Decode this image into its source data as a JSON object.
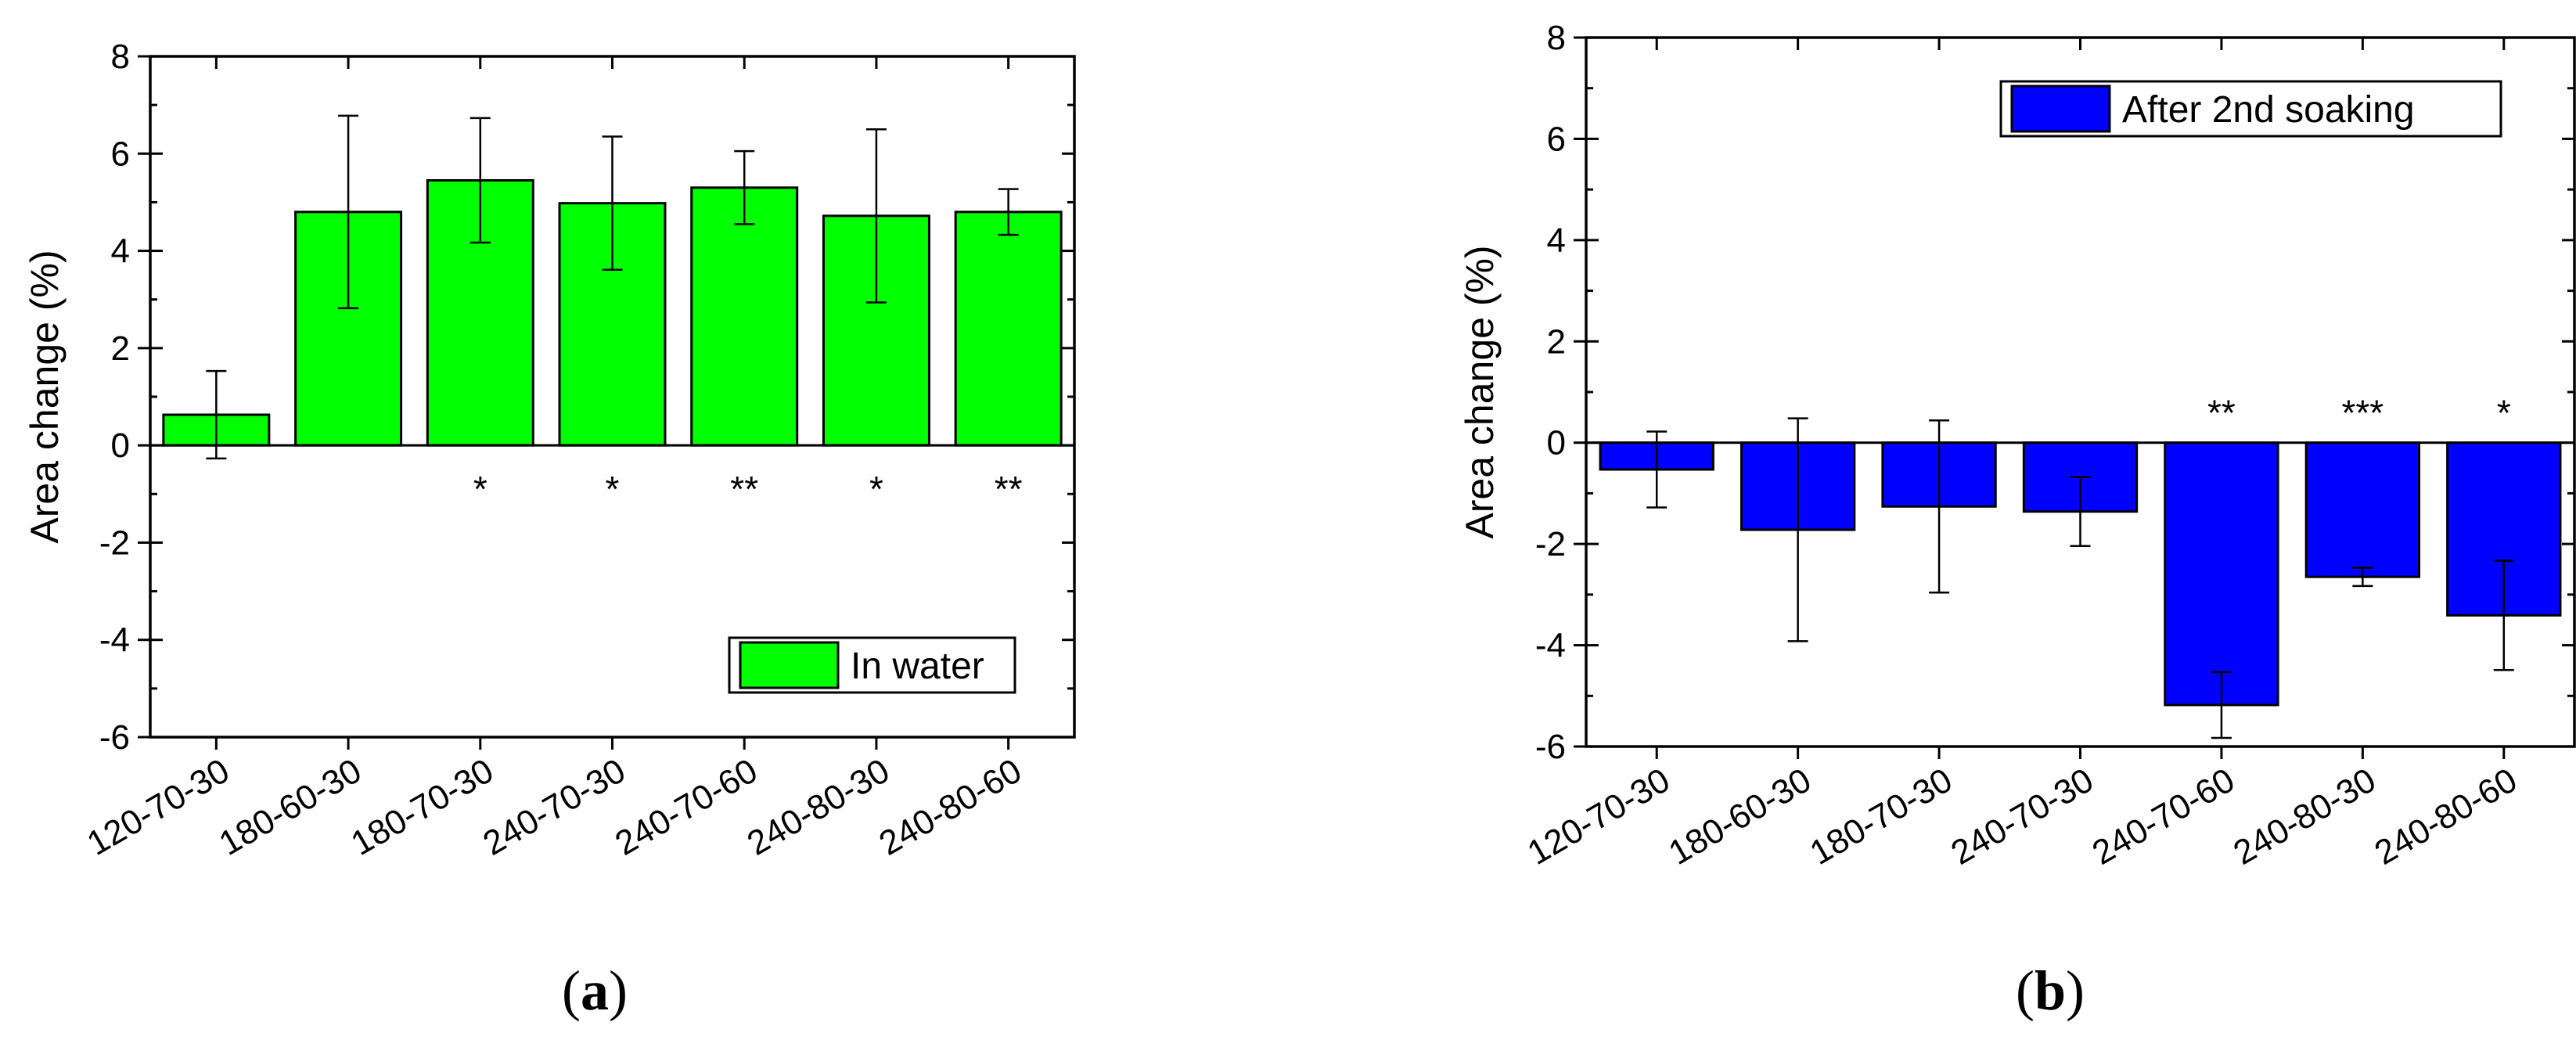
{
  "chart_data": [
    {
      "type": "bar",
      "panel_label": "a",
      "categories": [
        "120-70-30",
        "180-60-30",
        "180-70-30",
        "240-70-30",
        "240-70-60",
        "240-80-30",
        "240-80-60"
      ],
      "series": [
        {
          "name": "In water",
          "color": "#00ff00",
          "values": [
            0.63,
            4.8,
            5.45,
            4.98,
            5.3,
            4.72,
            4.8
          ],
          "errors": [
            0.9,
            1.98,
            1.28,
            1.37,
            0.75,
            1.78,
            0.47
          ]
        }
      ],
      "significance": [
        "",
        "",
        "*",
        "*",
        "**",
        "*",
        "**"
      ],
      "xlabel": "",
      "ylabel": "Area change (%)",
      "ylim": [
        -6,
        8
      ],
      "yticks": [
        -6,
        -4,
        -2,
        0,
        2,
        4,
        6,
        8
      ],
      "legend_position": "bottom-right"
    },
    {
      "type": "bar",
      "panel_label": "b",
      "categories": [
        "120-70-30",
        "180-60-30",
        "180-70-30",
        "240-70-30",
        "240-70-60",
        "240-80-30",
        "240-80-60"
      ],
      "series": [
        {
          "name": "After 2nd soaking",
          "color": "#0000ff",
          "values": [
            -0.53,
            -1.72,
            -1.26,
            -1.36,
            -5.18,
            -2.65,
            -3.41
          ],
          "errors": [
            0.75,
            2.2,
            1.7,
            0.68,
            0.65,
            0.18,
            1.08
          ]
        }
      ],
      "significance": [
        "",
        "",
        "",
        "",
        "**",
        "***",
        "*"
      ],
      "xlabel": "",
      "ylabel": "Area change (%)",
      "ylim": [
        -6,
        8
      ],
      "yticks": [
        -6,
        -4,
        -2,
        0,
        2,
        4,
        6,
        8
      ],
      "legend_position": "top-right"
    }
  ]
}
